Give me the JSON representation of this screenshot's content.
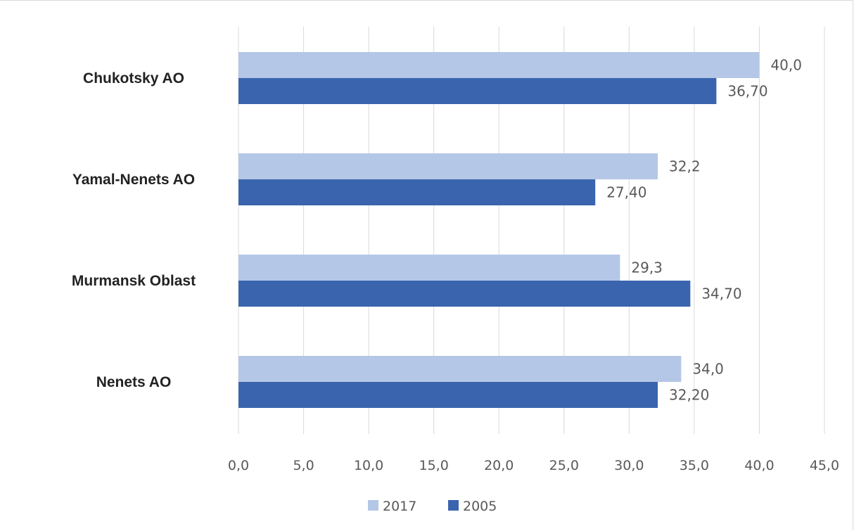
{
  "chart_data": {
    "type": "bar",
    "orientation": "horizontal",
    "categories": [
      "Chukotsky AO",
      "Yamal-Nenets AO",
      "Murmansk Oblast",
      "Nenets AO"
    ],
    "series": [
      {
        "name": "2017",
        "values": [
          40.0,
          32.2,
          29.3,
          34.0
        ],
        "labels": [
          "40,0",
          "32,2",
          "29,3",
          "34,0"
        ],
        "color": "#b4c7e7"
      },
      {
        "name": "2005",
        "values": [
          36.7,
          27.4,
          34.7,
          32.2
        ],
        "labels": [
          "36,70",
          "27,40",
          "34,70",
          "32,20"
        ],
        "color": "#3a64ae"
      }
    ],
    "xlim": [
      0,
      45
    ],
    "x_ticks": [
      0,
      5,
      10,
      15,
      20,
      25,
      30,
      35,
      40,
      45
    ],
    "x_tick_labels": [
      "0,0",
      "5,0",
      "10,0",
      "15,0",
      "20,0",
      "25,0",
      "30,0",
      "35,0",
      "40,0",
      "45,0"
    ],
    "grid": "vertical",
    "legend_position": "bottom"
  }
}
